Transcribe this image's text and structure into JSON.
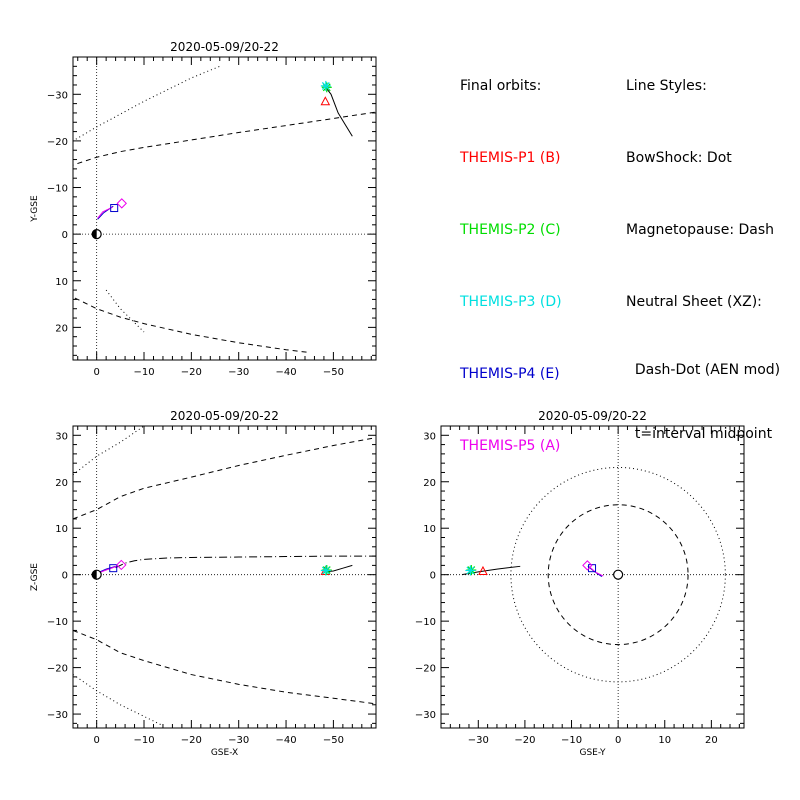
{
  "legend": {
    "orbits_title": "Final orbits:",
    "styles_title": "Line Styles:",
    "probes": [
      {
        "label": "THEMIS-P1 (B)",
        "color": "#ff0000"
      },
      {
        "label": "THEMIS-P2 (C)",
        "color": "#00dd00"
      },
      {
        "label": "THEMIS-P3 (D)",
        "color": "#00e0e0"
      },
      {
        "label": "THEMIS-P4 (E)",
        "color": "#0000cc"
      },
      {
        "label": "THEMIS-P5 (A)",
        "color": "#ee00ee"
      }
    ],
    "styles": [
      "BowShock: Dot",
      "Magnetopause: Dash",
      "Neutral Sheet (XZ):",
      "  Dash-Dot (AEN mod)",
      "  t=interval midpoint"
    ]
  },
  "chart_data": [
    {
      "id": "xy",
      "type": "line",
      "title": "2020-05-09/20-22",
      "xlabel": "",
      "ylabel": "Y-GSE",
      "xlim": [
        5,
        -59
      ],
      "ylim": [
        27,
        -38
      ],
      "xticks": [
        0,
        -10,
        -20,
        -30,
        -40,
        -50
      ],
      "yticks": [
        -30,
        -20,
        -10,
        0,
        10,
        20
      ],
      "earth": [
        0,
        0
      ],
      "bowshock": [
        [
          [
            15,
            -12
          ],
          [
            10,
            -17
          ],
          [
            0,
            -23
          ],
          [
            -10,
            -28.5
          ],
          [
            -20,
            -33.5
          ],
          [
            -26,
            -36
          ]
        ],
        [
          [
            -2,
            12
          ],
          [
            -5,
            16
          ],
          [
            -10,
            21
          ]
        ]
      ],
      "magnetopause": [
        [
          [
            11,
            -12
          ],
          [
            6,
            -14.5
          ],
          [
            0,
            -16.5
          ],
          [
            -5,
            -17.7
          ],
          [
            -10,
            -18.6
          ],
          [
            -20,
            -20.2
          ],
          [
            -30,
            -21.8
          ],
          [
            -40,
            -23.3
          ],
          [
            -50,
            -24.8
          ],
          [
            -59,
            -26.2
          ]
        ],
        [
          [
            8,
            12
          ],
          [
            4,
            14
          ],
          [
            0,
            16
          ],
          [
            -5,
            17.8
          ],
          [
            -10,
            19.2
          ],
          [
            -20,
            21.5
          ],
          [
            -30,
            23.3
          ],
          [
            -40,
            24.8
          ],
          [
            -45,
            25.4
          ]
        ]
      ],
      "tracks": [
        {
          "probe": 0,
          "points": [
            [
              -48,
              -32
            ],
            [
              -49.5,
              -30
            ],
            [
              -51,
              -26
            ],
            [
              -52.5,
              -23.5
            ],
            [
              -54,
              -21
            ]
          ],
          "color": "#000000"
        },
        {
          "probe": 3,
          "points": [
            [
              -0.2,
              -3.2
            ],
            [
              -1.5,
              -4.6
            ],
            [
              -3.5,
              -6
            ]
          ],
          "color": "#0000cc"
        },
        {
          "probe": 4,
          "points": [
            [
              -0.2,
              -3.4
            ],
            [
              -1.3,
              -4.8
            ],
            [
              -3.4,
              -5.8
            ]
          ],
          "color": "#ee00ee"
        }
      ],
      "markers": [
        {
          "probe": 0,
          "symbol": "triangle",
          "x": -48.3,
          "y": -28.5
        },
        {
          "probe": 1,
          "symbol": "star",
          "x": -48.6,
          "y": -31.5
        },
        {
          "probe": 2,
          "symbol": "star",
          "x": -48.4,
          "y": -31.8
        },
        {
          "probe": 3,
          "symbol": "square",
          "x": -3.7,
          "y": -5.6
        },
        {
          "probe": 4,
          "symbol": "diamond",
          "x": -5.3,
          "y": -6.6
        }
      ]
    },
    {
      "id": "xz",
      "type": "line",
      "title": "2020-05-09/20-22",
      "xlabel": "GSE-X",
      "ylabel": "Z-GSE",
      "xlim": [
        5,
        -59
      ],
      "ylim": [
        -33,
        32
      ],
      "xticks": [
        0,
        -10,
        -20,
        -30,
        -40,
        -50
      ],
      "yticks": [
        -30,
        -20,
        -10,
        0,
        10,
        20,
        30
      ],
      "earth": [
        0,
        0
      ],
      "bowshock": [
        [
          [
            5,
            21.5
          ],
          [
            0,
            25.5
          ],
          [
            -5,
            28.5
          ],
          [
            -10,
            32
          ]
        ],
        [
          [
            5,
            -21.5
          ],
          [
            0,
            -25
          ],
          [
            -5,
            -28
          ],
          [
            -10,
            -30.5
          ],
          [
            -14,
            -32.5
          ]
        ]
      ],
      "magnetopause": [
        [
          [
            5,
            12
          ],
          [
            0,
            14
          ],
          [
            -5,
            16.8
          ],
          [
            -10,
            18.6
          ],
          [
            -20,
            21
          ],
          [
            -30,
            23.5
          ],
          [
            -40,
            25.7
          ],
          [
            -50,
            27.8
          ],
          [
            -59,
            29.5
          ]
        ],
        [
          [
            5,
            -12
          ],
          [
            0,
            -14
          ],
          [
            -5,
            -16.8
          ],
          [
            -10,
            -18.5
          ],
          [
            -20,
            -21.5
          ],
          [
            -30,
            -23.6
          ],
          [
            -40,
            -25.3
          ],
          [
            -50,
            -26.6
          ],
          [
            -59,
            -27.8
          ]
        ]
      ],
      "neutral_sheet": [
        [
          -4,
          1.5
        ],
        [
          -6,
          2.5
        ],
        [
          -8,
          3
        ],
        [
          -10,
          3.3
        ],
        [
          -15,
          3.6
        ],
        [
          -20,
          3.7
        ],
        [
          -30,
          3.8
        ],
        [
          -40,
          3.9
        ],
        [
          -50,
          4
        ],
        [
          -59,
          4
        ]
      ],
      "tracks": [
        {
          "probe": 0,
          "points": [
            [
              -48,
              0.6
            ],
            [
              -50,
              0.8
            ],
            [
              -52,
              1.4
            ],
            [
              -54,
              2
            ]
          ],
          "color": "#000000"
        },
        {
          "probe": 3,
          "points": [
            [
              -0.2,
              0.4
            ],
            [
              -2,
              1.2
            ],
            [
              -4,
              1.8
            ]
          ],
          "color": "#0000cc"
        },
        {
          "probe": 4,
          "points": [
            [
              -0.2,
              0.3
            ],
            [
              -2,
              1
            ],
            [
              -4.5,
              1.9
            ]
          ],
          "color": "#ee00ee"
        }
      ],
      "markers": [
        {
          "probe": 0,
          "symbol": "triangle",
          "x": -48.3,
          "y": 0.8
        },
        {
          "probe": 1,
          "symbol": "star",
          "x": -48.6,
          "y": 1
        },
        {
          "probe": 2,
          "symbol": "star",
          "x": -48.4,
          "y": 0.9
        },
        {
          "probe": 3,
          "symbol": "square",
          "x": -3.5,
          "y": 1.4
        },
        {
          "probe": 4,
          "symbol": "diamond",
          "x": -5.2,
          "y": 2.1
        }
      ]
    },
    {
      "id": "yz",
      "type": "line",
      "title": "2020-05-09/20-22",
      "xlabel": "GSE-Y",
      "ylabel": "",
      "xlim": [
        -38,
        27
      ],
      "ylim": [
        -33,
        32
      ],
      "xticks": [
        -30,
        -20,
        -10,
        0,
        10,
        20
      ],
      "yticks": [
        -30,
        -20,
        -10,
        0,
        10,
        20,
        30
      ],
      "earth": [
        0,
        0
      ],
      "bowshock_circle": 23,
      "magnetopause_circle": 15,
      "tracks": [
        {
          "probe": 0,
          "points": [
            [
              -33.5,
              0
            ],
            [
              -30,
              0.6
            ],
            [
              -26,
              1.2
            ],
            [
              -21,
              1.8
            ]
          ],
          "color": "#000000"
        },
        {
          "probe": 3,
          "points": [
            [
              -6.5,
              1.8
            ],
            [
              -5,
              0.6
            ],
            [
              -3.5,
              -0.4
            ]
          ],
          "color": "#0000cc"
        },
        {
          "probe": 4,
          "points": [
            [
              -6.4,
              1.9
            ],
            [
              -4.8,
              0.5
            ],
            [
              -3.2,
              -0.3
            ]
          ],
          "color": "#ee00ee"
        }
      ],
      "markers": [
        {
          "probe": 0,
          "symbol": "triangle",
          "x": -29,
          "y": 0.8
        },
        {
          "probe": 1,
          "symbol": "star",
          "x": -31.5,
          "y": 1
        },
        {
          "probe": 2,
          "symbol": "star",
          "x": -31.7,
          "y": 0.9
        },
        {
          "probe": 3,
          "symbol": "square",
          "x": -5.6,
          "y": 1.4
        },
        {
          "probe": 4,
          "symbol": "diamond",
          "x": -6.6,
          "y": 2
        }
      ]
    }
  ]
}
